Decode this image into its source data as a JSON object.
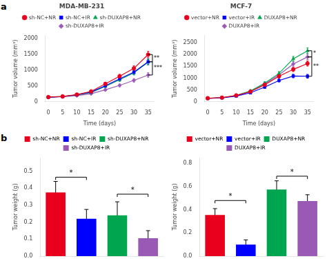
{
  "chart_data": [
    {
      "type": "line",
      "panel_label": "a",
      "title": "MDA-MB-231",
      "xlabel": "Time (days)",
      "ylabel": "Tumor volume (mm³)",
      "x": [
        0,
        5,
        10,
        15,
        20,
        25,
        30,
        35
      ],
      "xlim": [
        -1,
        37
      ],
      "xticks": [
        0,
        5,
        10,
        15,
        20,
        25,
        30,
        35
      ],
      "ylim": [
        0,
        2100
      ],
      "yticks": [
        0,
        500,
        1000,
        1500,
        2000
      ],
      "grid": false,
      "legend": "top",
      "series": [
        {
          "name": "sh-NC+NR",
          "color": "#e8001d",
          "marker": "circle",
          "values": [
            150,
            170,
            230,
            330,
            570,
            810,
            1060,
            1500
          ],
          "errors": [
            10,
            12,
            20,
            30,
            50,
            60,
            80,
            100
          ]
        },
        {
          "name": "sh-NC+IR",
          "color": "#0000ff",
          "marker": "square",
          "values": [
            145,
            165,
            220,
            310,
            510,
            730,
            940,
            1270
          ],
          "errors": [
            10,
            12,
            18,
            28,
            45,
            55,
            70,
            90
          ]
        },
        {
          "name": "sh-DUXAP8+NR",
          "color": "#00a550",
          "marker": "triangle",
          "values": [
            148,
            168,
            215,
            295,
            490,
            700,
            920,
            1260
          ],
          "errors": [
            10,
            11,
            18,
            25,
            42,
            52,
            68,
            85
          ]
        },
        {
          "name": "sh-DUXAP8+IR",
          "color": "#9b59b6",
          "marker": "diamond",
          "values": [
            142,
            160,
            195,
            255,
            380,
            520,
            680,
            850
          ],
          "errors": [
            8,
            10,
            15,
            20,
            32,
            42,
            55,
            70
          ]
        }
      ],
      "annotations": [
        {
          "text": "**",
          "x": 35,
          "x_end": 36.5,
          "y1": 1500,
          "y2": 1270
        },
        {
          "text": "***",
          "x": 35,
          "x_end": 36.5,
          "y1": 1270,
          "y2": 850
        }
      ]
    },
    {
      "type": "line",
      "title": "MCF-7",
      "xlabel": "Time (days)",
      "ylabel": "Tumor volume (mm³)",
      "x": [
        0,
        5,
        10,
        15,
        20,
        25,
        30,
        35
      ],
      "xlim": [
        -1,
        37
      ],
      "xticks": [
        0,
        5,
        10,
        15,
        20,
        25,
        30,
        35
      ],
      "ylim": [
        0,
        2800
      ],
      "yticks": [
        0,
        500,
        1000,
        1500,
        2000,
        2500
      ],
      "grid": false,
      "legend": "top",
      "series": [
        {
          "name": "vector+NR",
          "color": "#e8001d",
          "marker": "circle",
          "values": [
            150,
            175,
            270,
            430,
            720,
            1080,
            1370,
            1620
          ],
          "errors": [
            12,
            14,
            22,
            35,
            55,
            70,
            90,
            110
          ]
        },
        {
          "name": "vector+IR",
          "color": "#0000ff",
          "marker": "square",
          "values": [
            145,
            165,
            240,
            380,
            620,
            900,
            1090,
            1080
          ],
          "errors": [
            10,
            12,
            18,
            30,
            48,
            60,
            75,
            80
          ]
        },
        {
          "name": "DUXAP8+NR",
          "color": "#00a550",
          "marker": "triangle",
          "values": [
            148,
            170,
            270,
            460,
            790,
            1200,
            1820,
            2160
          ],
          "errors": [
            12,
            14,
            22,
            38,
            60,
            80,
            100,
            120
          ]
        },
        {
          "name": "DUXAP8+IR",
          "color": "#9b59b6",
          "marker": "diamond",
          "values": [
            148,
            168,
            260,
            430,
            760,
            1140,
            1600,
            1900
          ],
          "errors": [
            11,
            13,
            20,
            35,
            55,
            72,
            92,
            110
          ]
        }
      ],
      "annotations": [
        {
          "text": "*",
          "x": 35,
          "x_end": 36.5,
          "y1": 2160,
          "y2": 1900
        },
        {
          "text": "**",
          "x": 35,
          "x_end": 36.5,
          "y1": 1900,
          "y2": 1080
        }
      ]
    },
    {
      "type": "bar",
      "panel_label": "b",
      "categories": [
        "sh-NC+NR",
        "sh-NC+IR",
        "sh-DUXAP8+NR",
        "sh-DUXAP8+IR"
      ],
      "colors": [
        "#e8001d",
        "#0000ff",
        "#00a550",
        "#9b59b6"
      ],
      "values": [
        0.375,
        0.22,
        0.24,
        0.105
      ],
      "errors": [
        0.065,
        0.055,
        0.08,
        0.045
      ],
      "ylabel": "Tumor weight (g)",
      "ylim": [
        0,
        0.58
      ],
      "yticks": [
        {
          "value": 0,
          "label": "0.0"
        },
        0.1,
        0.2,
        0.3,
        0.4,
        0.5
      ],
      "tick_labels": "y",
      "grid": false,
      "legend": "top",
      "annotations": [
        {
          "text": "*",
          "from": "sh-NC+NR",
          "to": "sh-NC+IR",
          "y": 0.465
        },
        {
          "text": "*",
          "from": "sh-DUXAP8+NR",
          "to": "sh-DUXAP8+IR",
          "y": 0.365
        }
      ]
    },
    {
      "type": "bar",
      "categories": [
        "vector+NR",
        "vector+IR",
        "DUXAP8+NR",
        "DUXAP8+IR"
      ],
      "colors": [
        "#e8001d",
        "#0000ff",
        "#00a550",
        "#9b59b6"
      ],
      "values": [
        0.355,
        0.1,
        0.575,
        0.475
      ],
      "errors": [
        0.055,
        0.04,
        0.075,
        0.055
      ],
      "ylabel": "Tumor weight (g)",
      "ylim": [
        0,
        0.85
      ],
      "yticks": [
        {
          "value": 0,
          "label": "0.0"
        },
        0.2,
        0.4,
        0.6,
        0.8
      ],
      "tick_labels": "y",
      "grid": false,
      "legend": "top",
      "annotations": [
        {
          "text": "*",
          "from": "vector+NR",
          "to": "vector+IR",
          "y": 0.48
        },
        {
          "text": "*",
          "from": "DUXAP8+NR",
          "to": "DUXAP8+IR",
          "y": 0.69
        }
      ]
    }
  ]
}
